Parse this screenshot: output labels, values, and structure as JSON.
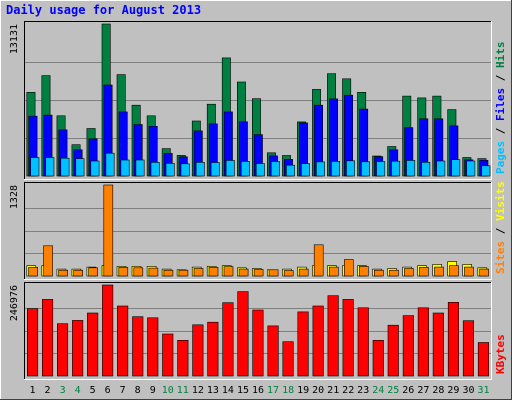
{
  "chart_data": {
    "type": "bar",
    "title": "Daily usage for August 2013",
    "categories": [
      "1",
      "2",
      "3",
      "4",
      "5",
      "6",
      "7",
      "8",
      "9",
      "10",
      "11",
      "12",
      "13",
      "14",
      "15",
      "16",
      "17",
      "18",
      "19",
      "20",
      "21",
      "22",
      "23",
      "24",
      "25",
      "26",
      "27",
      "28",
      "29",
      "30",
      "31"
    ],
    "weekend_days": [
      "3",
      "4",
      "10",
      "11",
      "17",
      "18",
      "24",
      "25",
      "31"
    ],
    "panels": [
      {
        "id": "hits",
        "ymax_label": "13131",
        "ylim": [
          0,
          13131
        ],
        "axis_label_parts": [
          {
            "text": "Pages",
            "color": "#00c0ff"
          },
          {
            "text": " / ",
            "color": "#000000"
          },
          {
            "text": "Files",
            "color": "#0000ff"
          },
          {
            "text": " / ",
            "color": "#000000"
          },
          {
            "text": "Hits",
            "color": "#008040"
          }
        ],
        "series": [
          {
            "name": "Hits",
            "color": "#008040",
            "values": [
              7230,
              8670,
              5200,
              2700,
              4100,
              13131,
              8760,
              6120,
              5200,
              2370,
              1780,
              4750,
              6200,
              10200,
              8120,
              6680,
              2000,
              1770,
              4670,
              7480,
              8840,
              8400,
              7230,
              1730,
              2550,
              6900,
              6750,
              6900,
              5740,
              1600,
              1500
            ]
          },
          {
            "name": "Files",
            "color": "#0000ff",
            "values": [
              5170,
              5260,
              3980,
              2260,
              3210,
              7860,
              5540,
              4450,
              4290,
              1950,
              1660,
              3900,
              4500,
              5540,
              4680,
              3580,
              1740,
              1440,
              4590,
              6120,
              6660,
              6980,
              5780,
              1680,
              2260,
              4180,
              4940,
              4940,
              4330,
              1400,
              1360
            ]
          },
          {
            "name": "Pages",
            "color": "#00c0ff",
            "values": [
              1600,
              1600,
              1540,
              1500,
              1300,
              1970,
              1380,
              1380,
              1180,
              1100,
              1050,
              1180,
              1170,
              1350,
              1260,
              1080,
              1250,
              930,
              1070,
              1220,
              1260,
              1310,
              1230,
              1250,
              1280,
              1350,
              1180,
              1300,
              1410,
              1300,
              880
            ]
          }
        ]
      },
      {
        "id": "visits",
        "ymax_label": "1328",
        "ylim": [
          0,
          1328
        ],
        "axis_label_parts": [
          {
            "text": "Sites",
            "color": "#ff8000"
          },
          {
            "text": " / ",
            "color": "#000000"
          },
          {
            "text": "Visits",
            "color": "#ffff00"
          }
        ],
        "series": [
          {
            "name": "Visits",
            "color": "#ffff00",
            "values": [
              150,
              150,
              100,
              100,
              130,
              150,
              140,
              140,
              140,
              100,
              90,
              130,
              140,
              150,
              120,
              110,
              90,
              100,
              130,
              150,
              150,
              150,
              150,
              100,
              110,
              130,
              150,
              170,
              210,
              170,
              120
            ]
          },
          {
            "name": "Sites",
            "color": "#ff8000",
            "values": [
              125,
              440,
              85,
              85,
              120,
              1328,
              125,
              120,
              115,
              85,
              85,
              110,
              125,
              135,
              100,
              95,
              90,
              80,
              100,
              455,
              130,
              240,
              140,
              85,
              85,
              110,
              125,
              130,
              150,
              130,
              100
            ]
          }
        ]
      },
      {
        "id": "kbytes",
        "ymax_label": "246976",
        "ylim": [
          0,
          246976
        ],
        "axis_label_parts": [
          {
            "text": "KBytes",
            "color": "#ff0000"
          }
        ],
        "series": [
          {
            "name": "KBytes",
            "color": "#ff0000",
            "values": [
              183000,
              208000,
              142000,
              151000,
              171000,
              246976,
              190000,
              161000,
              158000,
              114000,
              97000,
              139000,
              146000,
              199000,
              229000,
              179000,
              136000,
              93000,
              174000,
              190000,
              218000,
              208000,
              185000,
              97000,
              138000,
              164000,
              185000,
              171000,
              200000,
              150000,
              91000
            ]
          }
        ]
      }
    ]
  },
  "colors": {
    "background": "#c0c0c0",
    "plot_background": "#c0c0c0",
    "grid": "#808080",
    "title": "#0000ff",
    "weekday_label": "#000000",
    "weekend_label": "#008040"
  }
}
